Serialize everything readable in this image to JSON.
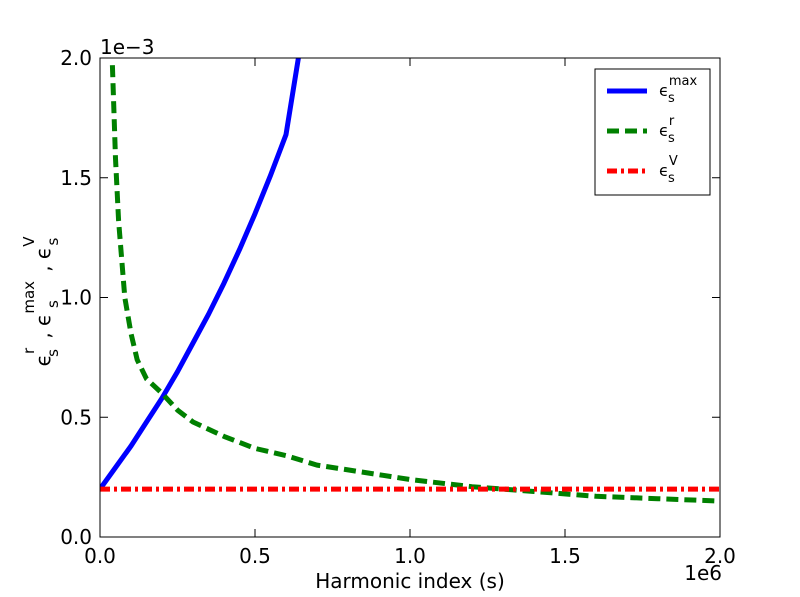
{
  "chart_data": {
    "type": "line",
    "xlabel": "Harmonic index (s)",
    "x_offset_text": "1e6",
    "y_offset_text": "1e−3",
    "ylabel_parts": [
      {
        "base": "ϵ",
        "sub": "s",
        "sup": "r"
      },
      {
        "sep": " , "
      },
      {
        "base": "ϵ",
        "sub": "s",
        "sup": "max"
      },
      {
        "sep": " , "
      },
      {
        "base": "ϵ",
        "sub": "s",
        "sup": "V"
      }
    ],
    "xlim": [
      0,
      2.0
    ],
    "ylim": [
      0,
      2.0
    ],
    "x_ticks": [
      0.0,
      0.5,
      1.0,
      1.5,
      2.0
    ],
    "x_tick_labels": [
      "0.0",
      "0.5",
      "1.0",
      "1.5",
      "2.0"
    ],
    "y_ticks": [
      0.0,
      0.5,
      1.0,
      1.5,
      2.0
    ],
    "y_tick_labels": [
      "0.0",
      "0.5",
      "1.0",
      "1.5",
      "2.0"
    ],
    "grid": false,
    "legend_position": "top-right",
    "series": [
      {
        "name": "ϵs^max",
        "legend_base": "ϵ",
        "legend_sub": "s",
        "legend_sup": "max",
        "color": "#0000ff",
        "style": "solid",
        "x": [
          0.0,
          0.05,
          0.1,
          0.15,
          0.2,
          0.25,
          0.3,
          0.35,
          0.4,
          0.45,
          0.5,
          0.55,
          0.6,
          0.64
        ],
        "y": [
          0.2,
          0.29,
          0.38,
          0.48,
          0.58,
          0.69,
          0.81,
          0.93,
          1.06,
          1.2,
          1.35,
          1.51,
          1.68,
          2.0
        ]
      },
      {
        "name": "ϵs^r",
        "legend_base": "ϵ",
        "legend_sub": "s",
        "legend_sup": "r",
        "color": "#008000",
        "style": "dashed",
        "x": [
          0.04,
          0.05,
          0.06,
          0.08,
          0.1,
          0.12,
          0.15,
          0.2,
          0.25,
          0.3,
          0.4,
          0.5,
          0.6,
          0.7,
          0.8,
          1.0,
          1.2,
          1.4,
          1.6,
          1.8,
          2.0
        ],
        "y": [
          1.97,
          1.58,
          1.32,
          1.0,
          0.85,
          0.74,
          0.66,
          0.6,
          0.53,
          0.48,
          0.42,
          0.37,
          0.34,
          0.3,
          0.28,
          0.24,
          0.21,
          0.19,
          0.17,
          0.16,
          0.15
        ]
      },
      {
        "name": "ϵs^V",
        "legend_base": "ϵ",
        "legend_sub": "s",
        "legend_sup": "V",
        "color": "#ff0000",
        "style": "dashdot",
        "x": [
          0.0,
          2.0
        ],
        "y": [
          0.2,
          0.2
        ]
      }
    ]
  }
}
